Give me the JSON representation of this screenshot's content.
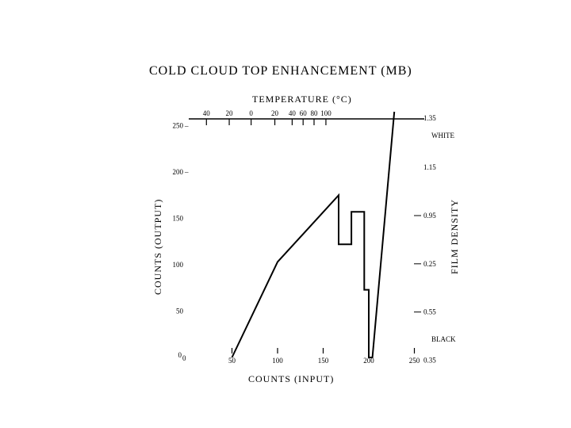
{
  "chart_data": {
    "type": "line",
    "title": "COLD CLOUD TOP ENHANCEMENT (MB)",
    "xlabel": "COUNTS (INPUT)",
    "ylabel": "COUNTS (OUTPUT)",
    "top_axis_label": "TEMPERATURE (°C)",
    "right_axis_label": "FILM DENSITY",
    "x_ticks": [
      "50",
      "100",
      "150",
      "200",
      "250"
    ],
    "y_ticks": [
      "0",
      "50",
      "100",
      "150",
      "200",
      "250"
    ],
    "y_tick_suffix": "–",
    "y_zero_label_subscript": "0",
    "temp_ticks": [
      {
        "label": "40",
        "x": 22
      },
      {
        "label": "20",
        "x": 47
      },
      {
        "label": "0",
        "x": 71
      },
      {
        "label": "20",
        "x": 97
      },
      {
        "label": "40",
        "x": 116
      },
      {
        "label": "60",
        "x": 128
      },
      {
        "label": "80",
        "x": 140
      },
      {
        "label": "100",
        "x": 153
      }
    ],
    "density_ticks": [
      {
        "label": "1.35",
        "y": 258,
        "dash": false
      },
      {
        "label": "1.15",
        "y": 205,
        "dash": false
      },
      {
        "label": "0.95",
        "y": 153,
        "dash": true
      },
      {
        "label": "0.25",
        "y": 101,
        "dash": true
      },
      {
        "label": "0.55",
        "y": 49,
        "dash": true
      },
      {
        "label": "0.35",
        "y": -3,
        "dash": false
      }
    ],
    "right_labels": {
      "white": "WHITE",
      "black": "BLACK"
    },
    "xlim": [
      0,
      265
    ],
    "ylim": [
      0,
      265
    ],
    "grid": false,
    "legend": "none",
    "series": [
      {
        "x": [
          50,
          100,
          167,
          167,
          181,
          181,
          195,
          195,
          200,
          200,
          204,
          204,
          228
        ],
        "y": [
          0,
          103,
          175,
          122,
          122,
          157,
          157,
          73,
          73,
          0,
          0,
          0,
          265
        ]
      }
    ]
  }
}
